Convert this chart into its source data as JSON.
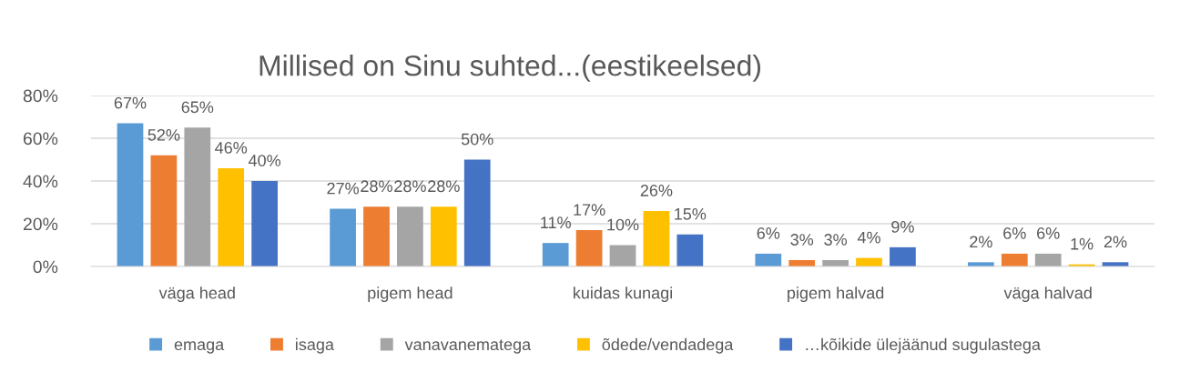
{
  "chart_data": {
    "type": "bar",
    "title": "Millised on Sinu suhted...(eestikeelsed)",
    "categories": [
      "väga head",
      "pigem head",
      "kuidas kunagi",
      "pigem halvad",
      "väga halvad"
    ],
    "series": [
      {
        "name": "emaga",
        "color": "#5b9bd5",
        "values": [
          67,
          27,
          11,
          6,
          2
        ],
        "value_labels": [
          "67%",
          "27%",
          "11%",
          "6%",
          "2%"
        ]
      },
      {
        "name": "isaga",
        "color": "#ed7d31",
        "values": [
          52,
          28,
          17,
          3,
          6
        ],
        "value_labels": [
          "52%",
          "28%",
          "17%",
          "3%",
          "6%"
        ]
      },
      {
        "name": "vanavanematega",
        "color": "#a5a5a5",
        "values": [
          65,
          28,
          10,
          3,
          6
        ],
        "value_labels": [
          "65%",
          "28%",
          "10%",
          "3%",
          "6%"
        ]
      },
      {
        "name": "õdede/vendadega",
        "color": "#ffc000",
        "values": [
          46,
          28,
          26,
          4,
          1
        ],
        "value_labels": [
          "46%",
          "28%",
          "26%",
          "4%",
          "1%"
        ]
      },
      {
        "name": "…kõikide ülejäänud sugulastega",
        "color": "#4472c4",
        "values": [
          40,
          50,
          15,
          9,
          2
        ],
        "value_labels": [
          "40%",
          "50%",
          "15%",
          "9%",
          "2%"
        ]
      }
    ],
    "ylim": [
      0,
      80
    ],
    "yticks": [
      {
        "value": 0,
        "label": "0%"
      },
      {
        "value": 20,
        "label": "20%"
      },
      {
        "value": 40,
        "label": "40%"
      },
      {
        "value": 60,
        "label": "60%"
      },
      {
        "value": 80,
        "label": "80%"
      }
    ],
    "grid": "y",
    "legend": "bottom"
  }
}
